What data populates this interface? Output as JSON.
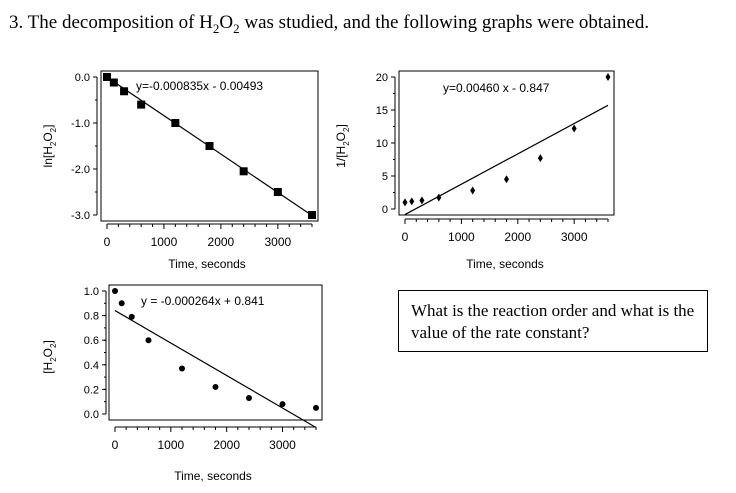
{
  "question": {
    "number": "3.",
    "text_before": "The decomposition of H",
    "sub1": "2",
    "mid": "O",
    "sub2": "2",
    "text_after": " was studied, and the following graphs were obtained."
  },
  "prompt_box": {
    "text": "What is the reaction order and what is the value of the rate constant?"
  },
  "chart_data": [
    {
      "type": "scatter",
      "title": "",
      "equation": "y=-0.000835x - 0.00493",
      "xlabel": "Time, seconds",
      "ylabel_main": "ln[H",
      "ylabel_sub1": "2",
      "ylabel_mid": "O",
      "ylabel_sub2": "2",
      "ylabel_end": "]",
      "xlim": [
        0,
        3600
      ],
      "ylim": [
        -3.0,
        0.0
      ],
      "xticks": [
        0,
        1000,
        2000,
        3000
      ],
      "xtick_labels": [
        "0",
        "1000",
        "2000",
        "3000"
      ],
      "yticks": [
        0.0,
        -1.0,
        -2.0,
        -3.0
      ],
      "ytick_labels": [
        "0.0",
        "-1.0",
        "-2.0",
        "-3.0"
      ],
      "marker": "square",
      "x": [
        0,
        120,
        300,
        600,
        1200,
        1800,
        2400,
        3000,
        3600
      ],
      "y": [
        0.0,
        -0.12,
        -0.31,
        -0.6,
        -1.0,
        -1.5,
        -2.05,
        -2.5,
        -3.0
      ],
      "fit": {
        "slope": -0.000835,
        "intercept": -0.00493
      }
    },
    {
      "type": "scatter",
      "title": "",
      "equation": "y=0.00460 x - 0.847",
      "xlabel": "Time, seconds",
      "ylabel_main": "1/[H",
      "ylabel_sub1": "2",
      "ylabel_mid": "O",
      "ylabel_sub2": "2",
      "ylabel_end": "]",
      "xlim": [
        0,
        3600
      ],
      "ylim": [
        0,
        20
      ],
      "xticks": [
        0,
        1000,
        2000,
        3000
      ],
      "xtick_labels": [
        "0",
        "1000",
        "2000",
        "3000"
      ],
      "yticks": [
        0,
        5,
        10,
        15,
        20
      ],
      "ytick_labels": [
        "0",
        "5",
        "10",
        "15",
        "20"
      ],
      "marker": "diamond",
      "x": [
        0,
        120,
        300,
        600,
        1200,
        1800,
        2400,
        3000,
        3600
      ],
      "y": [
        1.0,
        1.15,
        1.3,
        1.75,
        2.8,
        4.5,
        7.7,
        12.2,
        20.0
      ],
      "fit": {
        "slope": 0.0046,
        "intercept": -0.847
      }
    },
    {
      "type": "scatter",
      "title": "",
      "equation": "y = -0.000264x + 0.841",
      "xlabel": "Time, seconds",
      "ylabel_main": "[H",
      "ylabel_sub1": "2",
      "ylabel_mid": "O",
      "ylabel_sub2": "2",
      "ylabel_end": "]",
      "xlim": [
        0,
        3600
      ],
      "ylim": [
        0.0,
        1.0
      ],
      "xticks": [
        0,
        1000,
        2000,
        3000
      ],
      "xtick_labels": [
        "0",
        "1000",
        "2000",
        "3000"
      ],
      "yticks": [
        1.0,
        0.8,
        0.6,
        0.4,
        0.2,
        0.0
      ],
      "ytick_labels": [
        "1.0",
        "0.8",
        "0.6",
        "0.4",
        "0.2",
        "0.0"
      ],
      "marker": "circle",
      "x": [
        0,
        120,
        300,
        600,
        1200,
        1800,
        2400,
        3000,
        3600
      ],
      "y": [
        1.0,
        0.9,
        0.79,
        0.6,
        0.37,
        0.22,
        0.13,
        0.08,
        0.05
      ],
      "fit": {
        "slope": -0.000264,
        "intercept": 0.841
      }
    }
  ]
}
